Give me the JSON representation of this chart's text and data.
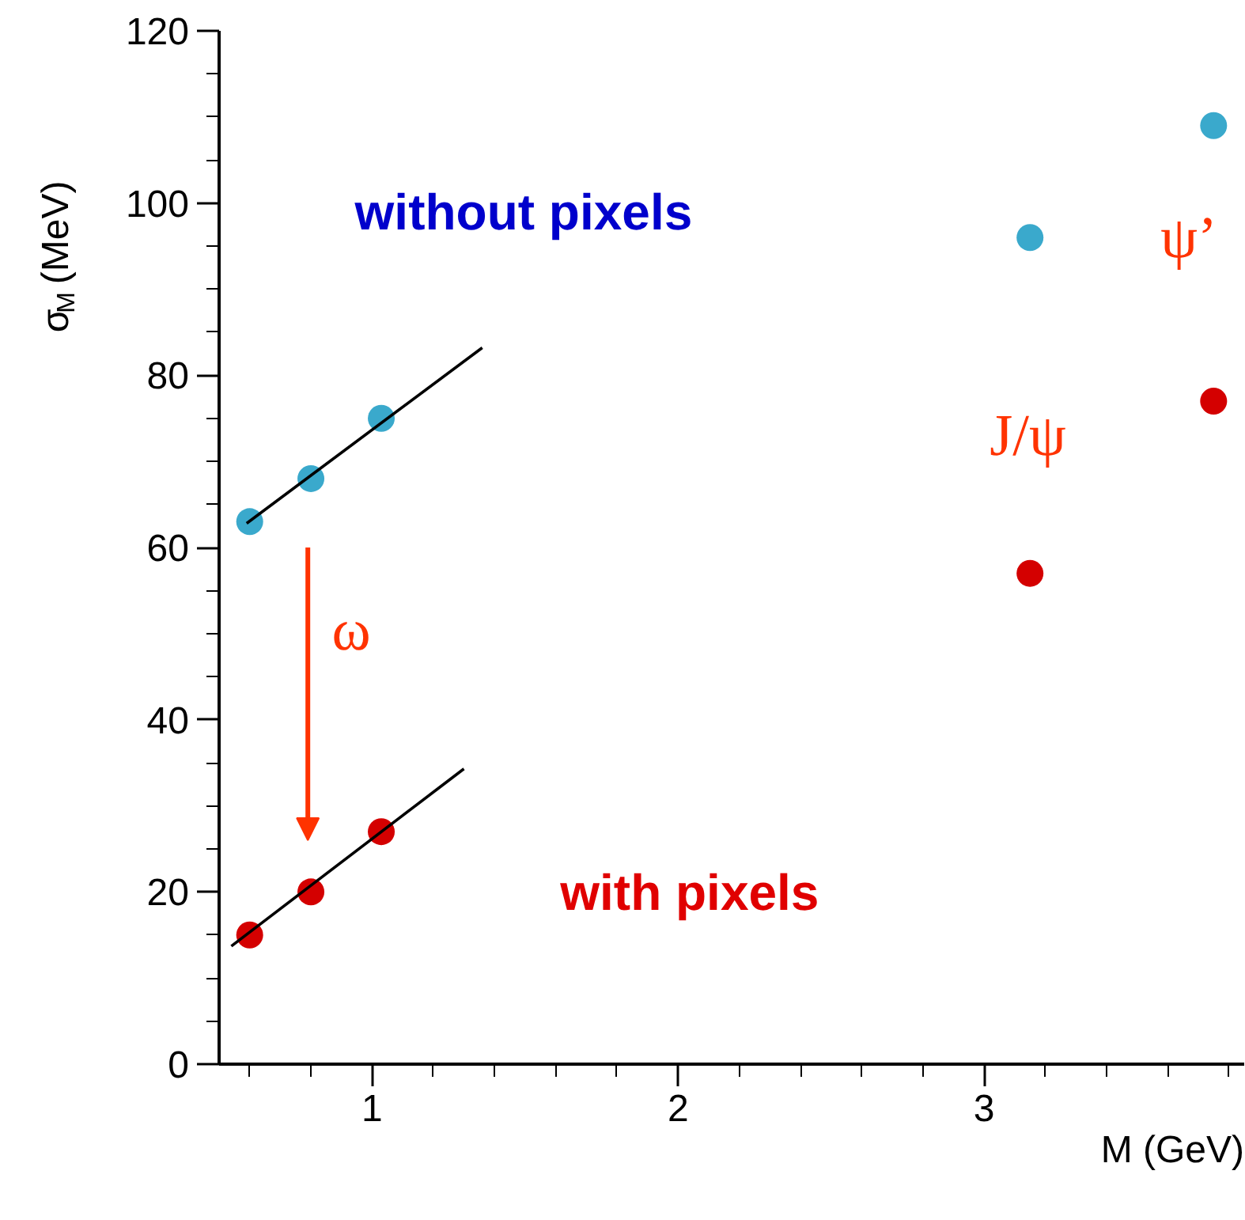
{
  "chart_data": {
    "type": "scatter",
    "xlabel": "M (GeV)",
    "ylabel": "σ$_{M}$ (MeV)",
    "xlim": [
      0.5,
      3.85
    ],
    "ylim": [
      0,
      120
    ],
    "xticks": [
      1,
      2,
      3
    ],
    "yticks": [
      0,
      20,
      40,
      60,
      80,
      100,
      120
    ],
    "grid": false,
    "marker": "circle",
    "series": [
      {
        "color": "#3aa9cc",
        "x": [
          0.6,
          0.8,
          1.03,
          3.15,
          3.75
        ],
        "values": [
          63,
          68,
          75,
          96,
          109
        ]
      },
      {
        "color": "#d40000",
        "x": [
          0.6,
          0.8,
          1.03,
          3.15,
          3.75
        ],
        "values": [
          15,
          20,
          27,
          57,
          77
        ]
      },
      {
        "type": "line",
        "marker": "none",
        "color": "#000000",
        "x": [
          0.59,
          1.36
        ],
        "values": [
          62.8,
          83.2
        ]
      },
      {
        "type": "line",
        "marker": "none",
        "color": "#000000",
        "x": [
          0.54,
          1.3
        ],
        "values": [
          13.7,
          34.3
        ]
      }
    ],
    "annotations": [
      "without pixels",
      "with pixels",
      "ω",
      "J/ψ",
      "ψ’"
    ]
  }
}
